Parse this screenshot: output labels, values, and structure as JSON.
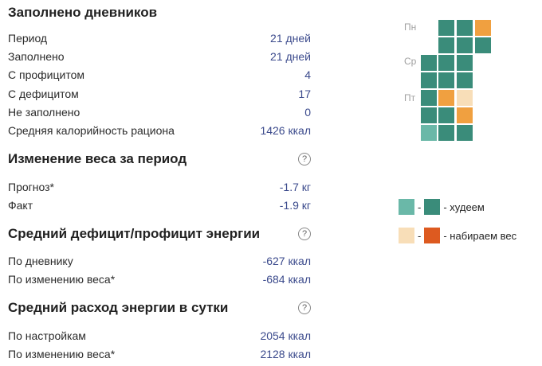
{
  "diaries": {
    "title": "Заполнено дневников",
    "rows": [
      {
        "label": "Период",
        "value": "21 дней"
      },
      {
        "label": "Заполнено",
        "value": "21 дней"
      },
      {
        "label": "С профицитом",
        "value": "4"
      },
      {
        "label": "С дефицитом",
        "value": "17"
      },
      {
        "label": "Не заполнено",
        "value": "0"
      },
      {
        "label": "Средняя калорийность рациона",
        "value": "1426 ккал"
      }
    ]
  },
  "weight": {
    "title": "Изменение веса за период",
    "help_icon": "?",
    "rows": [
      {
        "label": "Прогноз*",
        "value": "-1.7 кг"
      },
      {
        "label": "Факт",
        "value": "-1.9 кг"
      }
    ]
  },
  "energy_balance": {
    "title": "Средний дефицит/профицит энергии",
    "help_icon": "?",
    "rows": [
      {
        "label": "По дневнику",
        "value": "-627 ккал"
      },
      {
        "label": "По изменению веса*",
        "value": "-684 ккал"
      }
    ]
  },
  "energy_expense": {
    "title": "Средний расход энергии в сутки",
    "help_icon": "?",
    "rows": [
      {
        "label": "По настройкам",
        "value": "2054 ккал"
      },
      {
        "label": "По изменению веса*",
        "value": "2128 ккал"
      }
    ]
  },
  "calendar": {
    "day_labels": {
      "mon": "Пн",
      "wed": "Ср",
      "fri": "Пт"
    },
    "colors": {
      "teal": "#3a8c7a",
      "light_teal": "#6ab8a8",
      "orange": "#f0a040",
      "light_orange": "#f8deb8"
    }
  },
  "legend": {
    "lose": {
      "dash": "-",
      "label": "- худеем",
      "colors": [
        "#6ab8a8",
        "#3a8c7a"
      ]
    },
    "gain": {
      "dash": "-",
      "label": "- набираем вес",
      "colors": [
        "#f8deb8",
        "#dd5a20"
      ]
    }
  }
}
